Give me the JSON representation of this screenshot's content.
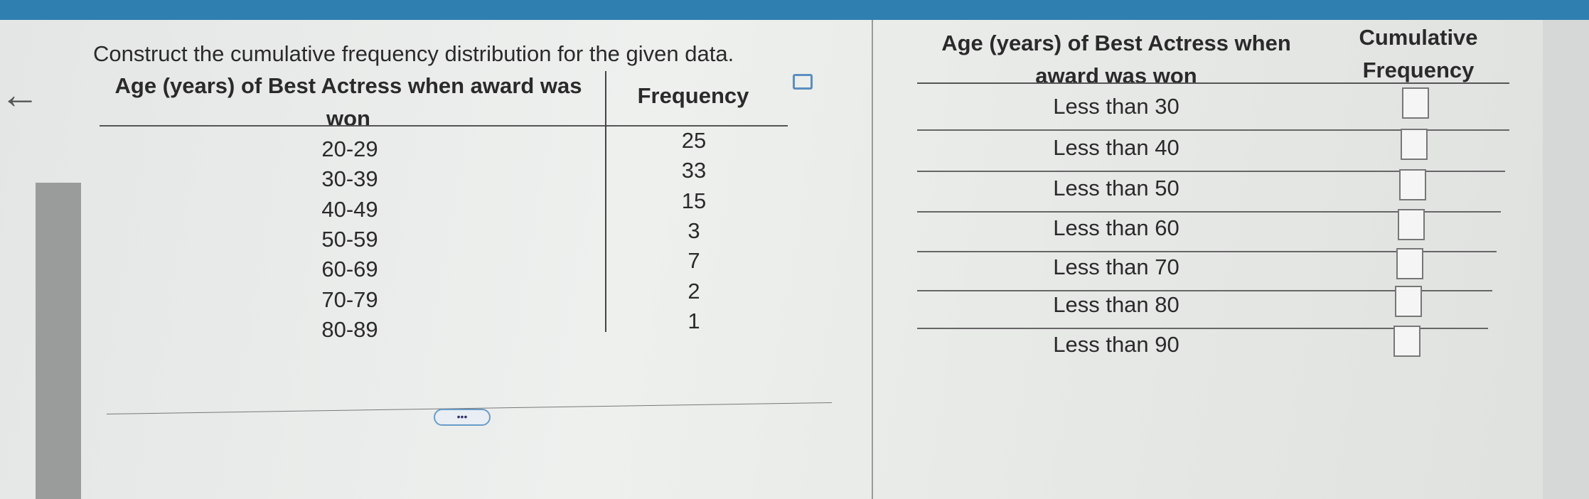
{
  "question": {
    "prompt": "Construct the cumulative frequency distribution for the given data.",
    "table": {
      "headers": [
        "Age (years) of Best Actress when award was won",
        "Frequency"
      ],
      "rows": [
        [
          "20-29",
          25
        ],
        [
          "30-39",
          33
        ],
        [
          "40-49",
          15
        ],
        [
          "50-59",
          3
        ],
        [
          "60-69",
          7
        ],
        [
          "70-79",
          2
        ],
        [
          "80-89",
          1
        ]
      ]
    }
  },
  "answer_table": {
    "headers": [
      "Age (years) of Best Actress when award was won",
      "Cumulative Frequency"
    ],
    "rows": [
      "Less than 30",
      "Less than 40",
      "Less than 50",
      "Less than 60",
      "Less than 70",
      "Less than 80",
      "Less than 90"
    ]
  }
}
